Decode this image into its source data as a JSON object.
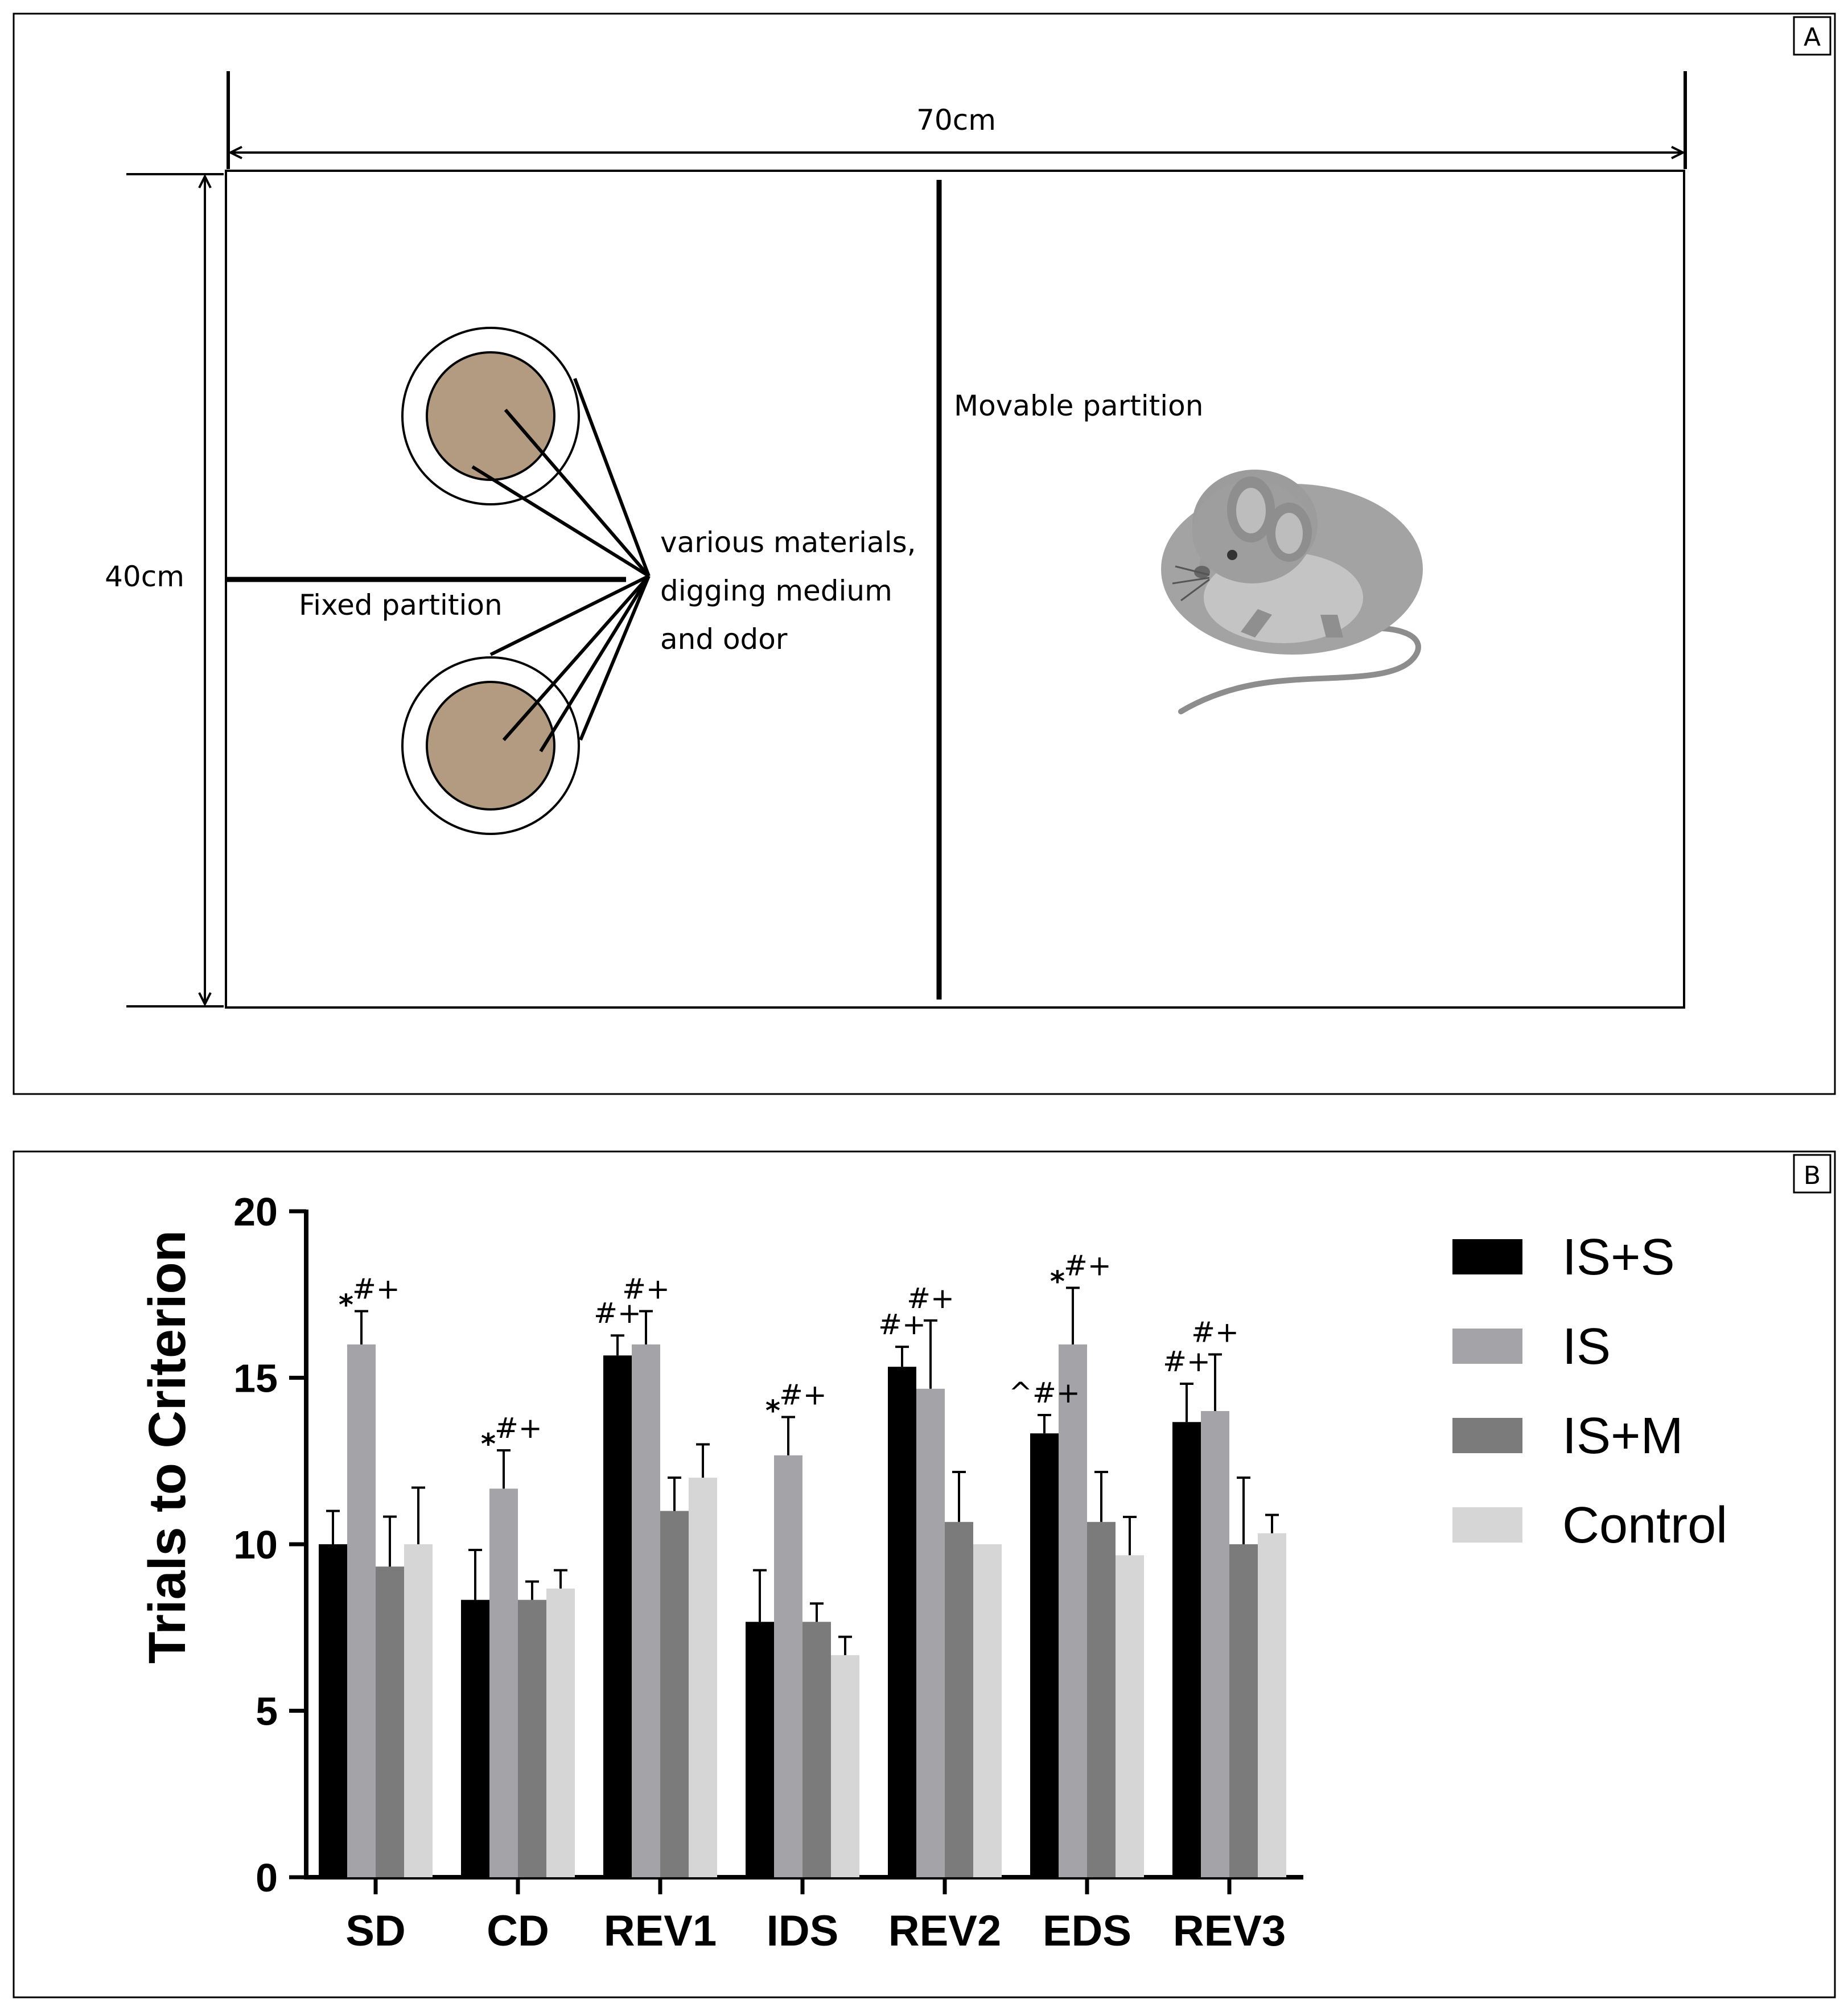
{
  "panel_a": {
    "label": "A",
    "width_label": "70cm",
    "height_label": "40cm",
    "fixed_partition_label": "Fixed partition",
    "movable_partition_label": "Movable partition",
    "materials_label_lines": [
      "various materials,",
      "digging medium",
      "and odor"
    ],
    "colors": {
      "bowl_fill": "#b39b82",
      "mouse": "#9a9a9a",
      "lines": "#000000"
    }
  },
  "chart_data": {
    "panel_label": "B",
    "type": "bar",
    "title": "",
    "xlabel": "",
    "ylabel": "Trials to Criterion",
    "ylim": [
      0,
      20
    ],
    "yticks": [
      "0",
      "5",
      "10",
      "15",
      "20"
    ],
    "grid": false,
    "legend_position": "top-right",
    "categories": [
      "SD",
      "CD",
      "REV1",
      "IDS",
      "REV2",
      "EDS",
      "REV3"
    ],
    "series": [
      {
        "name": "IS+S",
        "color": "#000000",
        "values": [
          10,
          8.33,
          15.67,
          7.67,
          15.33,
          13.33,
          13.67
        ],
        "errors": [
          1.0,
          1.5,
          0.6,
          1.55,
          0.6,
          0.55,
          1.15
        ]
      },
      {
        "name": "IS",
        "color": "#a3a3a8",
        "values": [
          16,
          11.67,
          16,
          12.67,
          14.67,
          16,
          14
        ],
        "errors": [
          1.0,
          1.15,
          1.0,
          1.15,
          2.05,
          1.7,
          1.7
        ]
      },
      {
        "name": "IS+M",
        "color": "#7b7b7b",
        "values": [
          9.33,
          8.33,
          11,
          7.67,
          10.67,
          10.67,
          10
        ],
        "errors": [
          1.5,
          0.55,
          1.0,
          0.55,
          1.5,
          1.5,
          2.0
        ]
      },
      {
        "name": "Control",
        "color": "#d6d6d6",
        "values": [
          10,
          8.67,
          12,
          6.67,
          10,
          9.67,
          10.33
        ],
        "errors": [
          1.7,
          0.55,
          1.0,
          0.55,
          0,
          1.15,
          0.55
        ]
      }
    ],
    "annotations": [
      {
        "category": "SD",
        "series": "IS",
        "star": "*",
        "text": "#+"
      },
      {
        "category": "CD",
        "series": "IS",
        "star": "*",
        "text": "#+"
      },
      {
        "category": "REV1",
        "series": "IS+S",
        "star": "",
        "text": "#+"
      },
      {
        "category": "REV1",
        "series": "IS",
        "star": "",
        "text": "#+"
      },
      {
        "category": "IDS",
        "series": "IS",
        "star": "*",
        "text": "#+"
      },
      {
        "category": "REV2",
        "series": "IS+S",
        "star": "",
        "text": "#+"
      },
      {
        "category": "REV2",
        "series": "IS",
        "star": "",
        "text": "#+"
      },
      {
        "category": "EDS",
        "series": "IS+S",
        "star": "",
        "text": "^#+"
      },
      {
        "category": "EDS",
        "series": "IS",
        "star": "*",
        "text": "#+"
      },
      {
        "category": "REV3",
        "series": "IS+S",
        "star": "",
        "text": "#+"
      },
      {
        "category": "REV3",
        "series": "IS",
        "star": "",
        "text": "#+"
      }
    ]
  }
}
